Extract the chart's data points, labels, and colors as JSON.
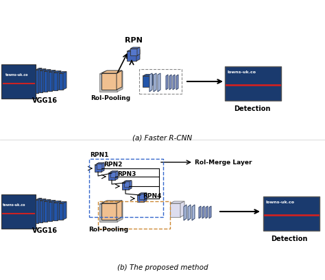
{
  "title_a": "(a) Faster R-CNN",
  "title_b": "(b) The proposed method",
  "label_vgg16": "VGG16",
  "label_rpn": "RPN",
  "label_roi_pooling_a": "RoI-Pooling",
  "label_detection": "Detection",
  "label_rpn1": "RPN1",
  "label_rpn2": "RPN2",
  "label_rpn3": "RPN3",
  "label_rpn4": "RPN4",
  "label_roi_pooling_b": "RoI-Pooling",
  "label_roi_merge": "RoI-Merge Layer",
  "bg_color": "#ffffff",
  "blue_dark": "#2255aa",
  "blue_mid": "#3366cc",
  "blue_light": "#4488ee",
  "orange_light": "#f0c090",
  "gray_light": "#cccccc",
  "white": "#ffffff"
}
